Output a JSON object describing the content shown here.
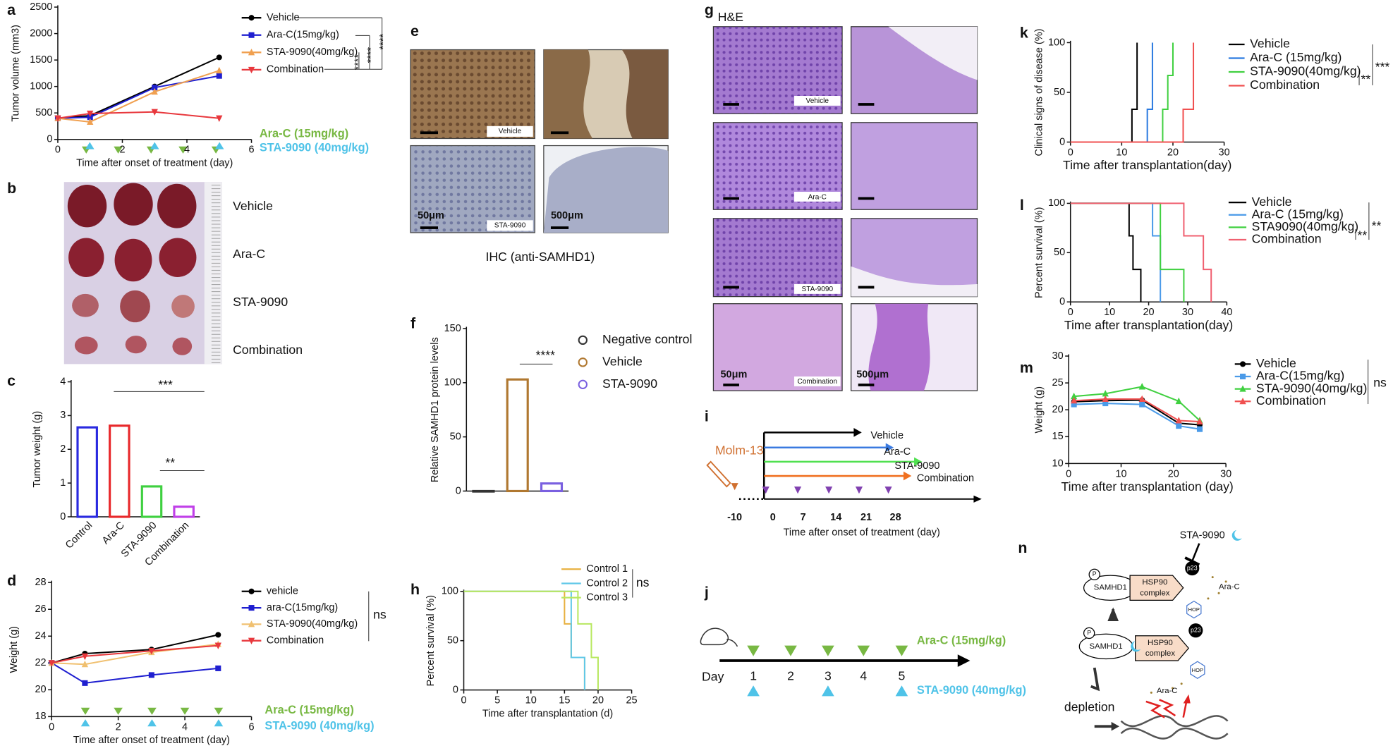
{
  "chart_data": [
    {
      "label": "a",
      "type": "line",
      "xlabel": "Time after onset of treatment (day)",
      "ylabel": "Tumor volume (mm3)",
      "x": [
        0,
        1,
        3,
        5
      ],
      "xlim": [
        0,
        6
      ],
      "xticks": [
        0,
        2,
        4,
        6
      ],
      "ylim": [
        0,
        2500
      ],
      "yticks": [
        0,
        500,
        1000,
        1500,
        2000,
        2500
      ],
      "series": [
        {
          "name": "Vehicle",
          "color": "#000000",
          "marker": "circle",
          "values": [
            400,
            450,
            1000,
            1550
          ]
        },
        {
          "name": "Ara-C(15mg/kg)",
          "color": "#1f1fd0",
          "marker": "square",
          "values": [
            400,
            420,
            980,
            1200
          ]
        },
        {
          "name": "STA-9090(40mg/kg)",
          "color": "#f0a050",
          "marker": "triangle",
          "values": [
            400,
            330,
            900,
            1300
          ]
        },
        {
          "name": "Combination",
          "color": "#e8383d",
          "marker": "triangle-down",
          "values": [
            400,
            490,
            520,
            400
          ]
        }
      ],
      "annotations": [
        {
          "text": "****"
        },
        {
          "text": "****"
        },
        {
          "text": "****"
        },
        {
          "text": "Ara-C (15mg/kg)",
          "color": "#78b843"
        },
        {
          "text": "STA-9090 (40mg/kg)",
          "color": "#4fc3e8"
        }
      ]
    },
    {
      "label": "c",
      "type": "bar",
      "ylabel": "Tumor weight (g)",
      "categories": [
        "Control",
        "Ara-C",
        "STA-9090",
        "Combination"
      ],
      "values": [
        2.65,
        2.7,
        0.9,
        0.3
      ],
      "colors": [
        "#2a2ae0",
        "#e8282b",
        "#3fd040",
        "#c040e8"
      ],
      "ylim": [
        0,
        4
      ],
      "yticks": [
        0,
        1,
        2,
        3,
        4
      ],
      "annotations": [
        {
          "text": "***"
        },
        {
          "text": "**"
        }
      ]
    },
    {
      "label": "d",
      "type": "line",
      "xlabel": "Time after onset of treatment (day)",
      "ylabel": "Weight (g)",
      "x": [
        0,
        1,
        3,
        5
      ],
      "xlim": [
        0,
        6
      ],
      "xticks": [
        0,
        2,
        4,
        6
      ],
      "ylim": [
        18,
        28
      ],
      "yticks": [
        18,
        20,
        22,
        24,
        26,
        28
      ],
      "series": [
        {
          "name": "vehicle",
          "color": "#000000",
          "marker": "circle",
          "values": [
            22,
            22.7,
            23,
            24.1
          ]
        },
        {
          "name": "ara-C(15mg/kg)",
          "color": "#1f1fd0",
          "marker": "square",
          "values": [
            22,
            20.5,
            21.1,
            21.6
          ]
        },
        {
          "name": "STA-9090(40mg/kg)",
          "color": "#f0c070",
          "marker": "triangle",
          "values": [
            22,
            21.9,
            22.8,
            23.4
          ]
        },
        {
          "name": "Combination",
          "color": "#e8383d",
          "marker": "triangle-down",
          "values": [
            22,
            22.5,
            22.9,
            23.3
          ]
        }
      ],
      "annotations": [
        {
          "text": "ns"
        },
        {
          "text": "Ara-C (15mg/kg)",
          "color": "#78b843"
        },
        {
          "text": "STA-9090 (40mg/kg)",
          "color": "#4fc3e8"
        }
      ]
    },
    {
      "label": "f",
      "type": "bar",
      "ylabel": "Relative SAMHD1 protein levels",
      "categories": [
        "Negative control",
        "Vehicle",
        "STA-9090"
      ],
      "values": [
        0,
        103,
        7
      ],
      "colors": [
        "#333333",
        "#b07830",
        "#7a60e0"
      ],
      "ylim": [
        0,
        150
      ],
      "yticks": [
        0,
        50,
        100,
        150
      ],
      "annotations": [
        {
          "text": "****"
        }
      ]
    },
    {
      "label": "h",
      "type": "step",
      "xlabel": "Time after transplantation (d)",
      "ylabel": "Percent survival (%)",
      "xlim": [
        0,
        25
      ],
      "xticks": [
        0,
        5,
        10,
        15,
        20,
        25
      ],
      "ylim": [
        0,
        100
      ],
      "yticks": [
        0,
        50,
        100
      ],
      "series": [
        {
          "name": "Control 1",
          "color": "#e8b040",
          "x": [
            0,
            15,
            16,
            18
          ],
          "values": [
            100,
            67,
            33,
            0
          ]
        },
        {
          "name": "Control 2",
          "color": "#60c8e8",
          "x": [
            0,
            16,
            18
          ],
          "values": [
            100,
            33,
            0
          ]
        },
        {
          "name": "Control 3",
          "color": "#b8e860",
          "x": [
            0,
            17,
            19,
            20
          ],
          "values": [
            100,
            67,
            33,
            0
          ]
        }
      ],
      "annotations": [
        {
          "text": "ns"
        }
      ]
    },
    {
      "label": "k",
      "type": "step",
      "xlabel": "Time after transplantation(day)",
      "ylabel": "Clinical signs of disease (%)",
      "xlim": [
        0,
        30
      ],
      "xticks": [
        0,
        10,
        20,
        30
      ],
      "ylim": [
        0,
        100
      ],
      "yticks": [
        0,
        50,
        100
      ],
      "series": [
        {
          "name": "Vehicle",
          "color": "#000000",
          "x": [
            0,
            12,
            13
          ],
          "values": [
            0,
            33,
            100
          ]
        },
        {
          "name": "Ara-C (15mg/kg)",
          "color": "#2a7ae0",
          "x": [
            0,
            15,
            16
          ],
          "values": [
            0,
            33,
            100
          ]
        },
        {
          "name": "STA-9090(40mg/kg)",
          "color": "#40d040",
          "x": [
            0,
            18,
            19,
            20
          ],
          "values": [
            0,
            33,
            67,
            100
          ]
        },
        {
          "name": "Combination",
          "color": "#f05050",
          "x": [
            0,
            22,
            24
          ],
          "values": [
            0,
            33,
            100
          ]
        }
      ],
      "annotations": [
        {
          "text": "**"
        },
        {
          "text": "***"
        }
      ]
    },
    {
      "label": "l",
      "type": "step",
      "xlabel": "Time after transplantation(day)",
      "ylabel": "Percent survival (%)",
      "xlim": [
        0,
        40
      ],
      "xticks": [
        0,
        10,
        20,
        30,
        40
      ],
      "ylim": [
        0,
        100
      ],
      "yticks": [
        0,
        50,
        100
      ],
      "series": [
        {
          "name": "Vehicle",
          "color": "#000000",
          "x": [
            0,
            15,
            16,
            18
          ],
          "values": [
            100,
            67,
            33,
            0
          ]
        },
        {
          "name": "Ara-C (15mg/kg)",
          "color": "#4a9ae8",
          "x": [
            0,
            21,
            23
          ],
          "values": [
            100,
            67,
            0
          ]
        },
        {
          "name": "STA9090(40mg/kg)",
          "color": "#40d040",
          "x": [
            0,
            23,
            29
          ],
          "values": [
            100,
            33,
            0
          ]
        },
        {
          "name": "Combination",
          "color": "#f06070",
          "x": [
            0,
            29,
            34,
            36
          ],
          "values": [
            100,
            67,
            33,
            0
          ]
        }
      ],
      "annotations": [
        {
          "text": "**"
        },
        {
          "text": "**"
        }
      ]
    },
    {
      "label": "m",
      "type": "line",
      "xlabel": "Time after transplantation (day)",
      "ylabel": "Weight (g)",
      "x": [
        1,
        7,
        14,
        21,
        25
      ],
      "xlim": [
        0,
        30
      ],
      "xticks": [
        0,
        10,
        20,
        30
      ],
      "ylim": [
        10,
        30
      ],
      "yticks": [
        10,
        15,
        20,
        25,
        30
      ],
      "series": [
        {
          "name": "Vehicle",
          "color": "#000000",
          "marker": "circle",
          "values": [
            21.5,
            21.7,
            21.8,
            17.5,
            17.2
          ]
        },
        {
          "name": "Ara-C(15mg/kg)",
          "color": "#4a9ae8",
          "marker": "square",
          "values": [
            21,
            21.2,
            21,
            17,
            16.4
          ]
        },
        {
          "name": "STA-9090(40mg/kg)",
          "color": "#40d040",
          "marker": "triangle",
          "values": [
            22.5,
            23,
            24.3,
            21.6,
            18
          ]
        },
        {
          "name": "Combination",
          "color": "#f05050",
          "marker": "triangle",
          "values": [
            21.7,
            22,
            22,
            18,
            17.8
          ]
        }
      ],
      "annotations": [
        {
          "text": "ns"
        }
      ]
    }
  ],
  "figure": {
    "panel_b": {
      "label": "b",
      "groups": [
        "Vehicle",
        "Ara-C",
        "STA-9090",
        "Combination"
      ]
    },
    "panel_e": {
      "label": "e",
      "tags": [
        "Vehicle",
        "STA-9090"
      ],
      "scales": [
        "50μm",
        "500μm"
      ],
      "caption": "IHC (anti-SAMHD1)"
    },
    "panel_g": {
      "label": "g",
      "title": "H&E",
      "tags": [
        "Vehicle",
        "Ara-C",
        "STA-9090",
        "Combination"
      ],
      "scales": [
        "50μm",
        "500μm"
      ]
    },
    "panel_i": {
      "label": "i",
      "cell": "Molm-13",
      "arms": [
        "Vehicle",
        "Ara-C",
        "STA-9090",
        "Combination"
      ],
      "ticks": [
        "-10",
        "0",
        "7",
        "14",
        "21",
        "28"
      ],
      "xlabel": "Time after onset of treatment (day)"
    },
    "panel_j": {
      "label": "j",
      "day": "Day",
      "days": [
        "1",
        "2",
        "3",
        "4",
        "5"
      ],
      "drug1": "Ara-C (15mg/kg)",
      "drug2": "STA-9090 (40mg/kg)"
    },
    "panel_n": {
      "label": "n",
      "drug": "STA-9090",
      "protein": "SAMHD1",
      "complex": [
        "HSP90",
        "complex"
      ],
      "p23": "p23",
      "hop": "HOP",
      "arac": "Ara-C",
      "depletion": "depletion",
      "p": "P"
    }
  }
}
